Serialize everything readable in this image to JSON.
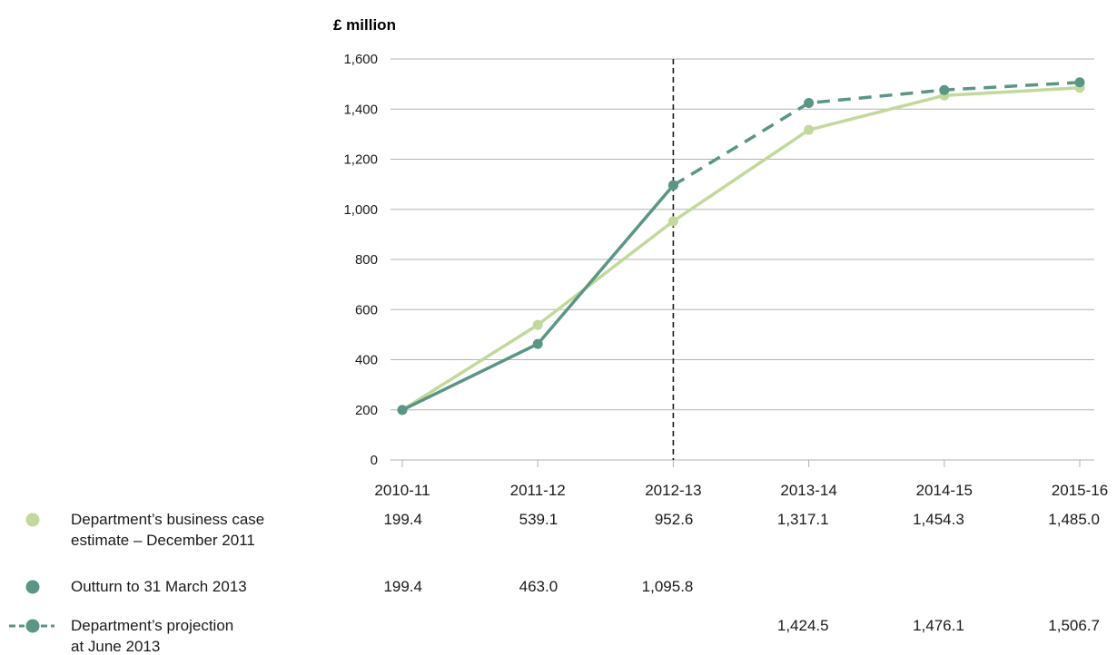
{
  "chart_data": {
    "type": "line",
    "ylabel": "£ million",
    "ylim": [
      0,
      1600
    ],
    "yticks": [
      "0",
      "200",
      "400",
      "600",
      "800",
      "1,000",
      "1,200",
      "1,400",
      "1,600"
    ],
    "categories": [
      "2010-11",
      "2011-12",
      "2012-13",
      "2013-14",
      "2014-15",
      "2015-16"
    ],
    "grid": true,
    "divider_after_category": "2012-13",
    "series": [
      {
        "name": "Department’s business case estimate – December 2011",
        "name_lines": [
          "Department’s business case",
          "estimate – December 2011"
        ],
        "color": "#c2d99b",
        "style": "solid",
        "values": [
          199.4,
          539.1,
          952.6,
          1317.1,
          1454.3,
          1485.0
        ],
        "labels": [
          "199.4",
          "539.1",
          "952.6",
          "1,317.1",
          "1,454.3",
          "1,485.0"
        ]
      },
      {
        "name": "Outturn to 31 March 2013",
        "name_lines": [
          "Outturn to 31 March 2013"
        ],
        "color": "#5b9585",
        "style": "solid",
        "values": [
          199.4,
          463.0,
          1095.8,
          null,
          null,
          null
        ],
        "labels": [
          "199.4",
          "463.0",
          "1,095.8",
          "",
          "",
          ""
        ]
      },
      {
        "name": "Department’s projection at June 2013",
        "name_lines": [
          "Department’s projection",
          "at June 2013"
        ],
        "color": "#5b9585",
        "style": "dashed",
        "values": [
          null,
          null,
          1095.8,
          1424.5,
          1476.1,
          1506.7
        ],
        "labels": [
          "",
          "",
          "",
          "1,424.5",
          "1,476.1",
          "1,506.7"
        ]
      }
    ]
  },
  "colors": {
    "unit_label": "#8a9aaa",
    "grid": "#b3b3b3",
    "divider": "#1a1a1a"
  }
}
